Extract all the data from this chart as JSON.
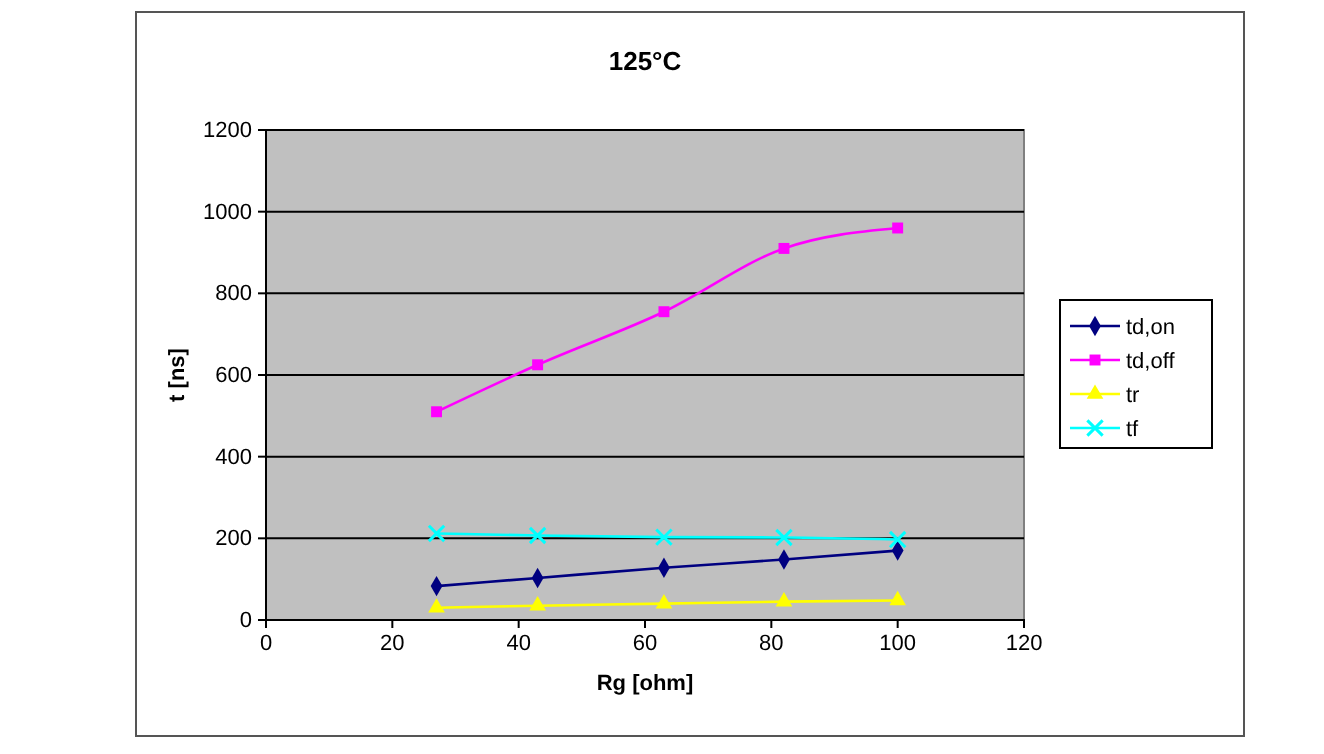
{
  "chart_data": {
    "type": "line",
    "title": "125°C",
    "xlabel": "Rg [ohm]",
    "ylabel": "t [ns]",
    "x": [
      27,
      43,
      63,
      82,
      100
    ],
    "series": [
      {
        "name": "td,on",
        "color": "#000080",
        "marker": "diamond",
        "values": [
          83,
          103,
          128,
          148,
          170
        ]
      },
      {
        "name": "td,off",
        "color": "#ff00ff",
        "marker": "square",
        "values": [
          510,
          625,
          755,
          910,
          960
        ]
      },
      {
        "name": "tr",
        "color": "#ffff00",
        "marker": "triangle",
        "values": [
          30,
          35,
          40,
          45,
          48
        ]
      },
      {
        "name": "tf",
        "color": "#00ffff",
        "marker": "cross",
        "values": [
          212,
          207,
          203,
          202,
          197
        ]
      }
    ],
    "xlim": [
      0,
      120
    ],
    "xticks": [
      0,
      20,
      40,
      60,
      80,
      100,
      120
    ],
    "ylim": [
      0,
      1200
    ],
    "yticks": [
      0,
      200,
      400,
      600,
      800,
      1000,
      1200
    ],
    "grid": "y",
    "legend": "right"
  }
}
